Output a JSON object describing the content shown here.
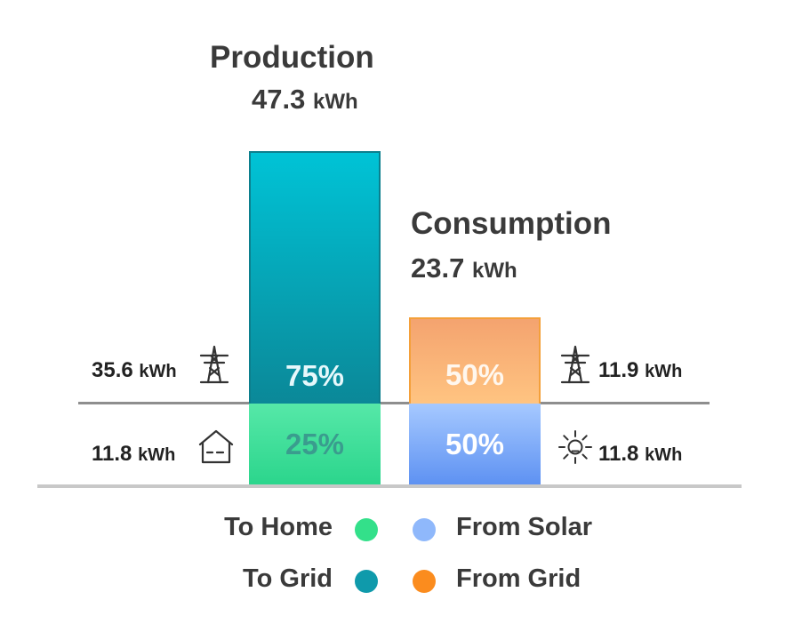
{
  "chart_data": {
    "type": "bar",
    "stacked": true,
    "percent_scale": true,
    "bars": [
      {
        "name": "Production",
        "total_value": "47.3",
        "unit": "kWh",
        "segments": [
          {
            "key": "to_grid",
            "label": "To Grid",
            "percent": 75,
            "percent_label": "75%",
            "value": "35.6",
            "unit": "kWh",
            "icon": "power-tower-icon",
            "color_top": "#00c3d6",
            "color_bottom": "#0b8a99"
          },
          {
            "key": "to_home",
            "label": "To Home",
            "percent": 25,
            "percent_label": "25%",
            "value": "11.8",
            "unit": "kWh",
            "icon": "house-icon",
            "color_top": "#4be3a0",
            "color_bottom": "#2ad48a"
          }
        ]
      },
      {
        "name": "Consumption",
        "total_value": "23.7",
        "unit": "kWh",
        "segments": [
          {
            "key": "from_grid",
            "label": "From Grid",
            "percent": 50,
            "percent_label": "50%",
            "value": "11.9",
            "unit": "kWh",
            "icon": "power-tower-icon",
            "color_top": "#f4a46f",
            "color_bottom": "#ffc27f"
          },
          {
            "key": "from_solar",
            "label": "From Solar",
            "percent": 50,
            "percent_label": "50%",
            "value": "11.8",
            "unit": "kWh",
            "icon": "sun-icon",
            "color_top": "#a2c6ff",
            "color_bottom": "#5f93f3"
          }
        ]
      }
    ],
    "legend": [
      {
        "label": "To Home",
        "color": "#33e08a"
      },
      {
        "label": "From Solar",
        "color": "#8fb8fb"
      },
      {
        "label": "To Grid",
        "color": "#0f9aab"
      },
      {
        "label": "From Grid",
        "color": "#fb8c1e"
      }
    ],
    "grid": false
  }
}
